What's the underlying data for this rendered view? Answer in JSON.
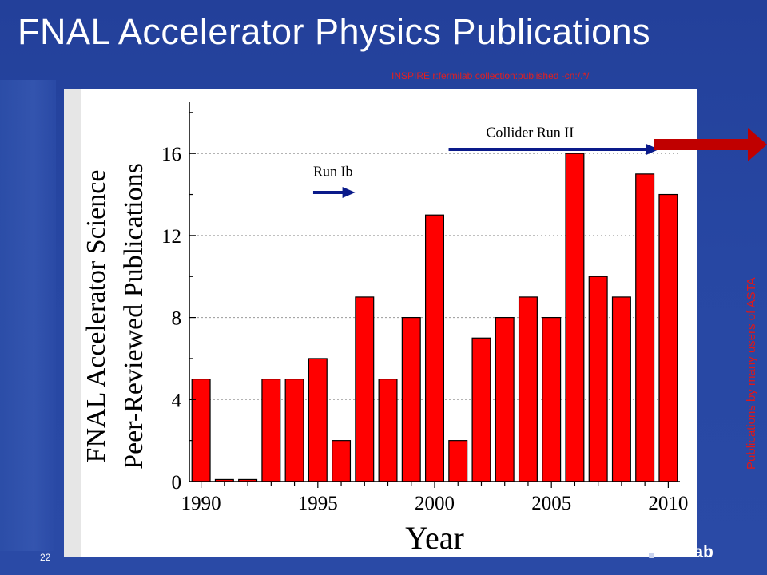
{
  "slide": {
    "title": "FNAL Accelerator Physics Publications",
    "query": "INSPIRE   r:fermilab collection:published -cn:/.*/",
    "side_note": "Publications by many users of ASTA",
    "page_number": "22",
    "footer_logo": "milab"
  },
  "colors": {
    "background": "#2646a2",
    "bar_fill": "#ff0000",
    "run_arrow": "#0a1a8a",
    "side_arrow": "#c00000",
    "note_text": "#e01818"
  },
  "chart_data": {
    "type": "bar",
    "xlabel": "Year",
    "ylabel": [
      "FNAL Accelerator Science",
      "Peer-Reviewed Publications"
    ],
    "x": [
      1990,
      1991,
      1992,
      1993,
      1994,
      1995,
      1996,
      1997,
      1998,
      1999,
      2000,
      2001,
      2002,
      2003,
      2004,
      2005,
      2006,
      2007,
      2008,
      2009,
      2010
    ],
    "values": [
      5,
      0.1,
      0.1,
      5,
      5,
      6,
      2,
      9,
      5,
      8,
      13,
      2,
      7,
      8,
      9,
      8,
      16,
      10,
      9,
      15,
      14
    ],
    "xlim": [
      1989.5,
      2010.5
    ],
    "ylim": [
      0,
      18.5
    ],
    "xticks": [
      1990,
      1995,
      2000,
      2005,
      2010
    ],
    "yticks": [
      0,
      4,
      8,
      12,
      16
    ],
    "grid": "dotted horizontal at major y ticks",
    "annotations": [
      {
        "text": "Run Ib",
        "arrow_from_x": 1994.8,
        "arrow_to_x": 1996.6,
        "arrow_y": 14.1,
        "text_x": 1994.8,
        "text_y": 14.9
      },
      {
        "text": "Collider Run II",
        "arrow_from_x": 2000.6,
        "arrow_to_x": 2009.6,
        "arrow_y": 16.2,
        "text_x": 2002.2,
        "text_y": 16.8
      }
    ]
  }
}
